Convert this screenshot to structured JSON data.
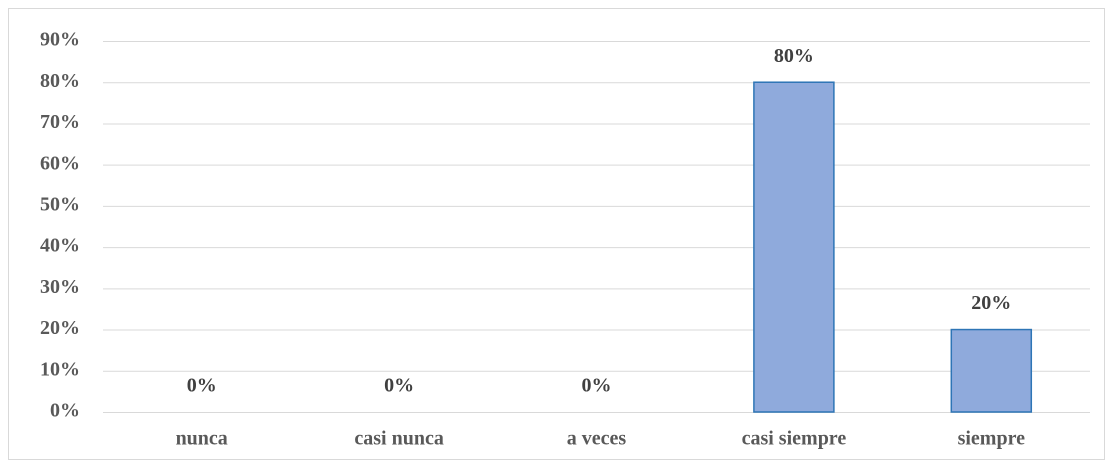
{
  "chart_data": {
    "type": "bar",
    "categories": [
      "nunca",
      "casi nunca",
      "a veces",
      "casi siempre",
      "siempre"
    ],
    "values": [
      0,
      0,
      0,
      80,
      20
    ],
    "value_labels": [
      "0%",
      "0%",
      "0%",
      "80%",
      "20%"
    ],
    "color": "#8faadc",
    "edge_color": "#2e75b6",
    "ylim": [
      0,
      90
    ],
    "yticks": [
      {
        "value": 0,
        "label": "0%"
      },
      {
        "value": 10,
        "label": "10%"
      },
      {
        "value": 20,
        "label": "20%"
      },
      {
        "value": 30,
        "label": "30%"
      },
      {
        "value": 40,
        "label": "40%"
      },
      {
        "value": 50,
        "label": "50%"
      },
      {
        "value": 60,
        "label": "60%"
      },
      {
        "value": 70,
        "label": "70%"
      },
      {
        "value": 80,
        "label": "80%"
      },
      {
        "value": 90,
        "label": "90%"
      }
    ],
    "grid": true
  }
}
